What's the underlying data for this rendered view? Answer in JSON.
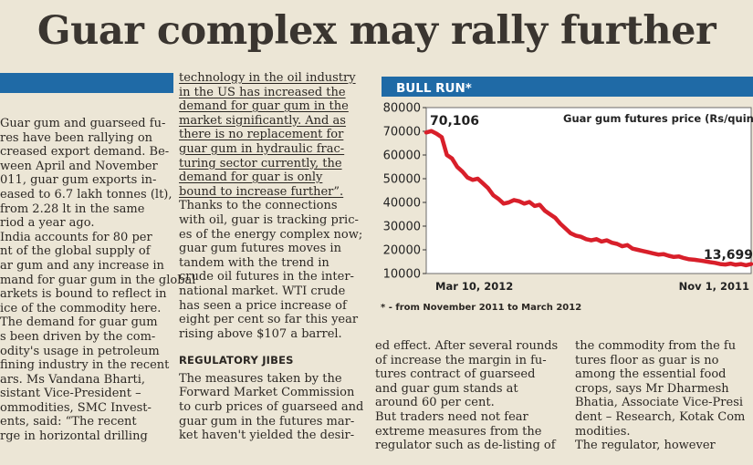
{
  "headline": "Guar complex may rally further",
  "colors": {
    "accent": "#1f6aa6",
    "line": "#d81f2a",
    "plot_bg": "#ffffff"
  },
  "col1": [
    "Guar gum and guarseed fu-",
    "res have been rallying on",
    "creased export demand. Be-",
    "ween April and November",
    "011, guar gum exports in-",
    "eased to 6.7 lakh tonnes (lt),",
    "from 2.28 lt in the same",
    "riod a year ago.",
    "India accounts for 80 per",
    "nt of the global supply of",
    "ar gum and any increase in",
    "mand for guar gum in the global",
    "arkets is bound to reflect in",
    "ice of the commodity here.",
    "The demand for guar gum",
    "s been driven by the com-",
    "odity's usage in petroleum",
    "fining industry in the recent",
    "ars. Ms Vandana Bharti,",
    "sistant Vice-President –",
    "ommodities, SMC Invest-",
    "ents, said: “The recent",
    "rge in horizontal drilling"
  ],
  "col2a": [
    "technology in the oil industry",
    "in the US has increased the",
    "demand for guar gum in the",
    "market significantly. And as",
    "there is no replacement for",
    "guar gum in hydraulic frac-",
    "turing sector currently, the",
    "demand for guar is only",
    "bound to increase further”.",
    "Thanks to the connections",
    "with oil, guar is tracking pric-",
    "es of the energy complex now;",
    "guar gum futures moves in",
    "tandem with the trend in",
    "crude oil futures in the inter-",
    "national market. WTI crude",
    "has seen a price increase of",
    "eight per cent so far this year",
    "rising above $107 a barrel."
  ],
  "col2_subhead": "REGULATORY JIBES",
  "col2b": [
    "The measures taken by the",
    "Forward Market Commission",
    "to curb prices of guarseed and",
    "guar gum in the futures mar-",
    "ket haven't yielded the desir-"
  ],
  "col3": [
    "ed effect. After several rounds",
    "of increase the margin in fu-",
    "tures contract of guarseed",
    "and guar gum stands at",
    "around 60 per cent.",
    "But traders need not fear",
    "extreme measures from the",
    "regulator such as de-listing of"
  ],
  "col4": [
    "the commodity from the fu",
    "tures floor as guar is no",
    "among the essential food",
    "crops, says Mr Dharmesh",
    "Bhatia, Associate Vice-Presi",
    "dent – Research, Kotak Com",
    "modities.",
    "The regulator, however"
  ],
  "chart_box": {
    "title": "BULL RUN*",
    "footnote": "* - from November 2011 to March 2012"
  },
  "chart_data": {
    "type": "line",
    "title": "Guar gum futures price (Rs/quintal)",
    "xlabel": "",
    "ylabel": "",
    "ylim": [
      10000,
      80000
    ],
    "yticks": [
      "80000",
      "70000",
      "60000",
      "50000",
      "40000",
      "30000",
      "20000",
      "10000"
    ],
    "x_start_label": "Mar 10, 2012",
    "x_end_label": "Nov 1, 2011",
    "annotations": {
      "start": "70,106",
      "end": "13,699"
    },
    "grid": false,
    "series": [
      {
        "values": [
          69500,
          70106,
          69000,
          67500,
          60000,
          58500,
          55000,
          53000,
          50500,
          49500,
          50000,
          48000,
          46000,
          43000,
          41500,
          39500,
          40000,
          41000,
          40500,
          39500,
          40200,
          38500,
          39000,
          36500,
          35000,
          33500,
          31000,
          29000,
          27000,
          26000,
          25500,
          24500,
          24000,
          24500,
          23500,
          24000,
          23000,
          22500,
          21500,
          22000,
          20500,
          20000,
          19500,
          19000,
          18500,
          18000,
          18200,
          17500,
          17000,
          17200,
          16500,
          16000,
          15800,
          15500,
          15200,
          14800,
          14500,
          14000,
          13800,
          14200,
          13699,
          14000,
          13500,
          14000
        ]
      }
    ]
  }
}
